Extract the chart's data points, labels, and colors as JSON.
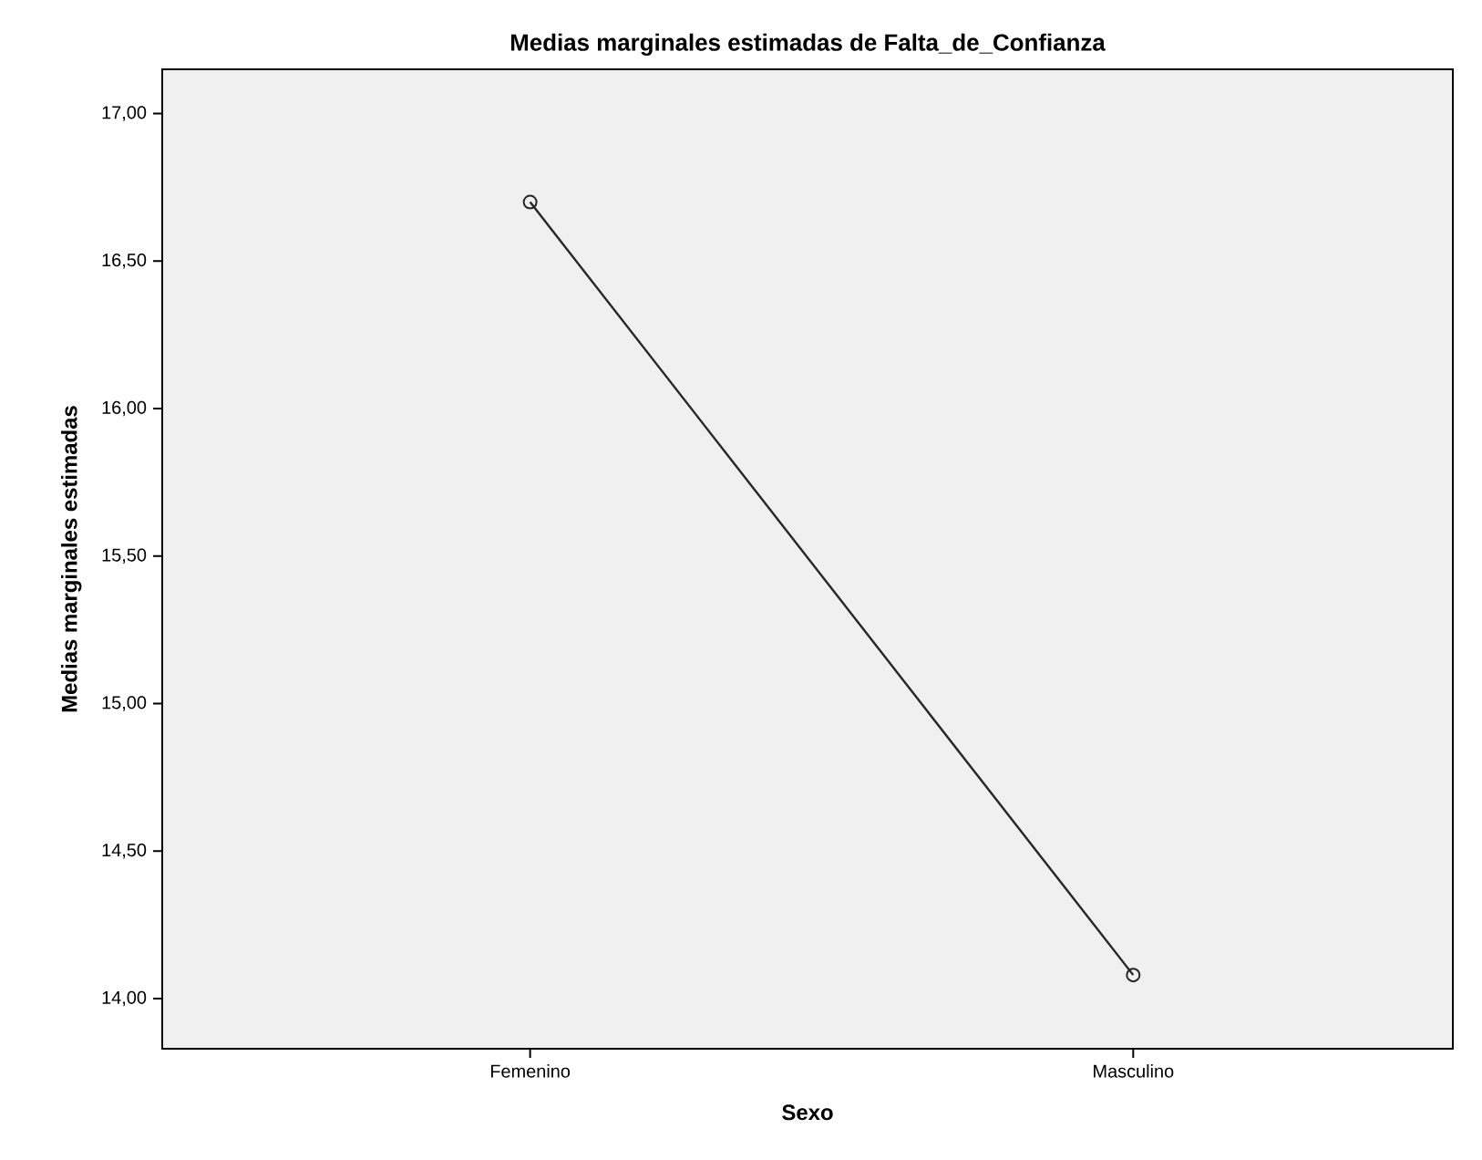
{
  "chart_data": {
    "type": "line",
    "title": "Medias marginales estimadas de Falta_de_Confianza",
    "xlabel": "Sexo",
    "ylabel": "Medias marginales estimadas",
    "categories": [
      "Femenino",
      "Masculino"
    ],
    "series": [
      {
        "color": "#262626",
        "values": [
          16.7,
          14.08
        ]
      }
    ],
    "ylim": [
      13.83,
      17.15
    ],
    "yticks": [
      {
        "value": 14,
        "label": "14,00"
      },
      {
        "value": 14.5,
        "label": "14,50"
      },
      {
        "value": 15,
        "label": "15,00"
      },
      {
        "value": 15.5,
        "label": "15,50"
      },
      {
        "value": 16,
        "label": "16,00"
      },
      {
        "value": 16.5,
        "label": "16,50"
      },
      {
        "value": 17,
        "label": "17,00"
      }
    ],
    "marker": "circle",
    "line_style": "solid"
  }
}
